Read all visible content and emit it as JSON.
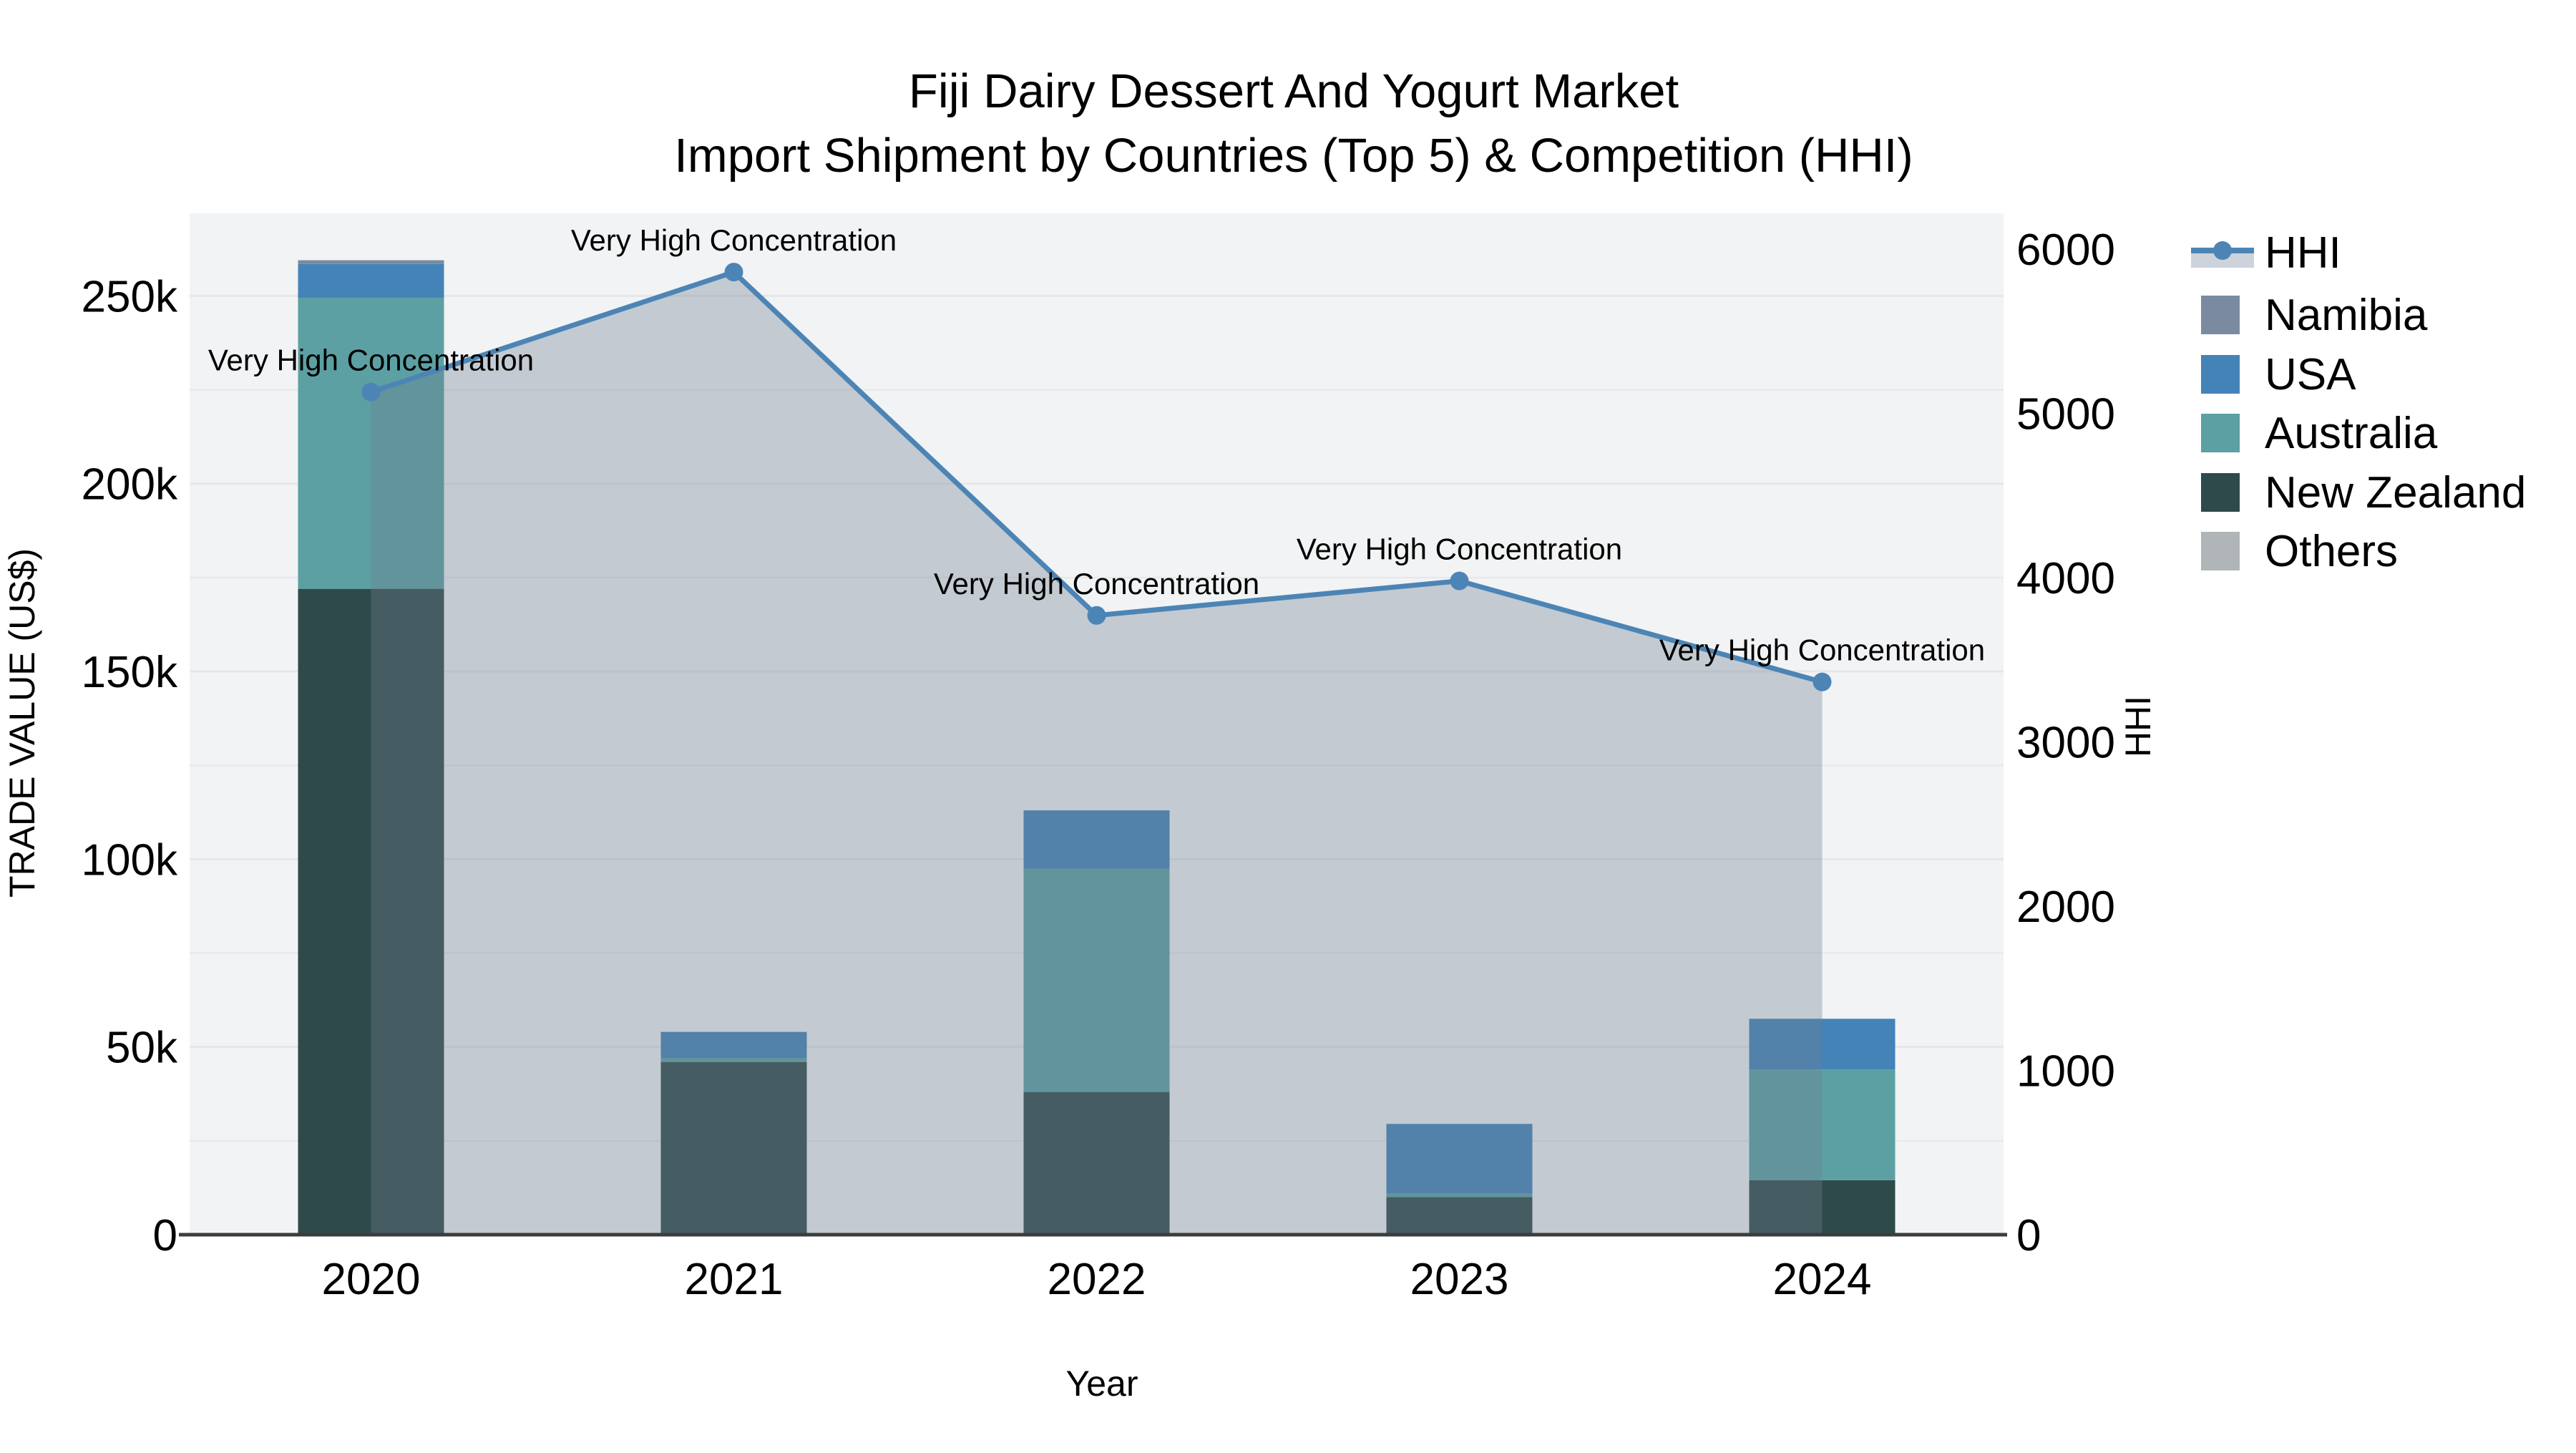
{
  "title": {
    "line1": "Fiji Dairy Dessert And Yogurt Market",
    "line2": "Import Shipment by Countries (Top 5) & Competition (HHI)"
  },
  "axes": {
    "x": {
      "title": "Year",
      "categories": [
        "2020",
        "2021",
        "2022",
        "2023",
        "2024"
      ]
    },
    "y_left": {
      "title": "TRADE VALUE (US$)",
      "ticks": [
        {
          "value": 0,
          "label": "0"
        },
        {
          "value": 50000,
          "label": "50k"
        },
        {
          "value": 100000,
          "label": "100k"
        },
        {
          "value": 150000,
          "label": "150k"
        },
        {
          "value": 200000,
          "label": "200k"
        },
        {
          "value": 250000,
          "label": "250k"
        }
      ],
      "range": [
        0,
        272000
      ]
    },
    "y_right": {
      "title": "HHI",
      "ticks": [
        {
          "value": 0,
          "label": "0"
        },
        {
          "value": 1000,
          "label": "1000"
        },
        {
          "value": 2000,
          "label": "2000"
        },
        {
          "value": 3000,
          "label": "3000"
        },
        {
          "value": 4000,
          "label": "4000"
        },
        {
          "value": 5000,
          "label": "5000"
        },
        {
          "value": 6000,
          "label": "6000"
        }
      ],
      "range": [
        0,
        6218
      ]
    }
  },
  "legend": {
    "items": [
      {
        "label": "HHI",
        "type": "line",
        "color": "#4c85b5",
        "band_color": "#cdd3db"
      },
      {
        "label": "Namibia",
        "type": "square",
        "color": "#7a8ba1"
      },
      {
        "label": "USA",
        "type": "square",
        "color": "#4483b8"
      },
      {
        "label": "Australia",
        "type": "square",
        "color": "#5ca0a3"
      },
      {
        "label": "New Zealand",
        "type": "square",
        "color": "#2f4a4b"
      },
      {
        "label": "Others",
        "type": "square",
        "color": "#b0b5b8"
      }
    ]
  },
  "colors": {
    "plot_background": "#f2f3f4",
    "gridline": "#e5e7ea",
    "axis_line": "#3c3c3c",
    "hhi_line": "#4c85b5",
    "hhi_area": "rgba(110,126,144,0.35)",
    "text": "#000000"
  },
  "chart_data": {
    "type": "bar+line",
    "title": "Fiji Dairy Dessert And Yogurt Market — Import Shipment by Countries (Top 5) & Competition (HHI)",
    "categories": [
      "2020",
      "2021",
      "2022",
      "2023",
      "2024"
    ],
    "bar_unit": "US$",
    "stack_order_bottom_to_top": [
      "New Zealand",
      "Australia",
      "USA",
      "Namibia",
      "Others"
    ],
    "series": [
      {
        "name": "New Zealand",
        "color": "#2f4a4b",
        "values": [
          172000,
          46000,
          38000,
          10000,
          14500
        ]
      },
      {
        "name": "Australia",
        "color": "#5ca0a3",
        "values": [
          77500,
          1000,
          59500,
          1000,
          29500
        ]
      },
      {
        "name": "USA",
        "color": "#4483b8",
        "values": [
          9000,
          7000,
          15500,
          18500,
          13500
        ]
      },
      {
        "name": "Namibia",
        "color": "#7a8ba1",
        "values": [
          1000,
          0,
          0,
          0,
          0
        ]
      },
      {
        "name": "Others",
        "color": "#b0b5b8",
        "values": [
          0,
          0,
          0,
          0,
          0
        ]
      }
    ],
    "hhi_series": {
      "name": "HHI",
      "axis": "right",
      "values": [
        5130,
        5860,
        3770,
        3980,
        3365
      ],
      "annotations": [
        "Very High Concentration",
        "Very High Concentration",
        "Very High Concentration",
        "Very High Concentration",
        "Very High Concentration"
      ]
    },
    "ylabel_left": "TRADE VALUE (US$)",
    "ylabel_right": "HHI",
    "xlabel": "Year",
    "ylim_left": [
      0,
      272000
    ],
    "ylim_right": [
      0,
      6218
    ],
    "grid": true,
    "legend_position": "right"
  }
}
